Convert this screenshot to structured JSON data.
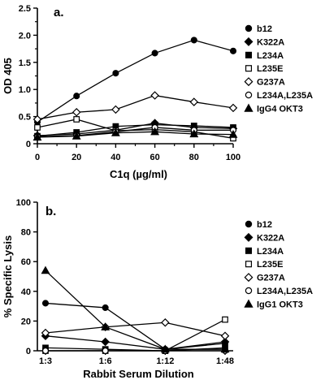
{
  "chart_data": [
    {
      "type": "line",
      "panel_label": "a.",
      "xlabel": "C1q (µg/ml)",
      "ylabel": "OD 405",
      "xlim": [
        0,
        100
      ],
      "ylim": [
        0,
        2.5
      ],
      "x_ticks": [
        0,
        20,
        40,
        60,
        80,
        100
      ],
      "x_tick_labels": [
        "0",
        "20",
        "40",
        "60",
        "80",
        "100"
      ],
      "y_ticks": [
        0,
        0.5,
        1.0,
        1.5,
        2.0,
        2.5
      ],
      "y_tick_labels": [
        "0",
        "0.5",
        "1.0",
        "1.5",
        "2.0",
        "2.5"
      ],
      "grid": false,
      "legend_position": "right",
      "x": [
        0,
        20,
        40,
        60,
        80,
        100
      ],
      "series": [
        {
          "name": "b12",
          "marker": "circle-filled",
          "values": [
            0.4,
            0.88,
            1.3,
            1.67,
            1.91,
            1.71
          ]
        },
        {
          "name": "K322A",
          "marker": "diamond-filled",
          "values": [
            0.15,
            0.18,
            0.25,
            0.38,
            0.3,
            0.28
          ]
        },
        {
          "name": "L234A",
          "marker": "square-filled",
          "values": [
            0.14,
            0.21,
            0.32,
            0.35,
            0.33,
            0.3
          ]
        },
        {
          "name": "L235E",
          "marker": "square-open",
          "values": [
            0.3,
            0.45,
            0.24,
            0.26,
            0.22,
            0.1
          ]
        },
        {
          "name": "G237A",
          "marker": "diamond-open",
          "values": [
            0.45,
            0.58,
            0.63,
            0.89,
            0.77,
            0.66
          ]
        },
        {
          "name": "L234A,L235A",
          "marker": "circle-open",
          "values": [
            0.13,
            0.15,
            0.22,
            0.3,
            0.25,
            0.25
          ]
        },
        {
          "name": "IgG4 OKT3",
          "marker": "triangle-filled",
          "values": [
            0.12,
            0.14,
            0.2,
            0.22,
            0.18,
            0.17
          ]
        }
      ]
    },
    {
      "type": "line",
      "panel_label": "b.",
      "xlabel": "Rabbit Serum Dilution",
      "ylabel": "% Specific Lysis",
      "categories": [
        "1:3",
        "1:6",
        "1:12",
        "1:48"
      ],
      "ylim": [
        0,
        100
      ],
      "y_ticks": [
        0,
        20,
        40,
        60,
        80,
        100
      ],
      "y_tick_labels": [
        "0",
        "20",
        "40",
        "60",
        "80",
        "100"
      ],
      "grid": false,
      "legend_position": "right",
      "series": [
        {
          "name": "b12",
          "marker": "circle-filled",
          "values": [
            32,
            29,
            1,
            5
          ]
        },
        {
          "name": "K322A",
          "marker": "diamond-filled",
          "values": [
            10,
            6,
            1,
            6
          ]
        },
        {
          "name": "L234A",
          "marker": "square-filled",
          "values": [
            2,
            1,
            0,
            2
          ]
        },
        {
          "name": "L235E",
          "marker": "square-open",
          "values": [
            0,
            0,
            0,
            21
          ]
        },
        {
          "name": "G237A",
          "marker": "diamond-open",
          "values": [
            12,
            16,
            19,
            10
          ]
        },
        {
          "name": "L234A,L235A",
          "marker": "circle-open",
          "values": [
            0,
            0,
            0,
            0
          ]
        },
        {
          "name": "IgG1 OKT3",
          "marker": "triangle-filled",
          "values": [
            54,
            16,
            1,
            1
          ]
        }
      ]
    }
  ]
}
